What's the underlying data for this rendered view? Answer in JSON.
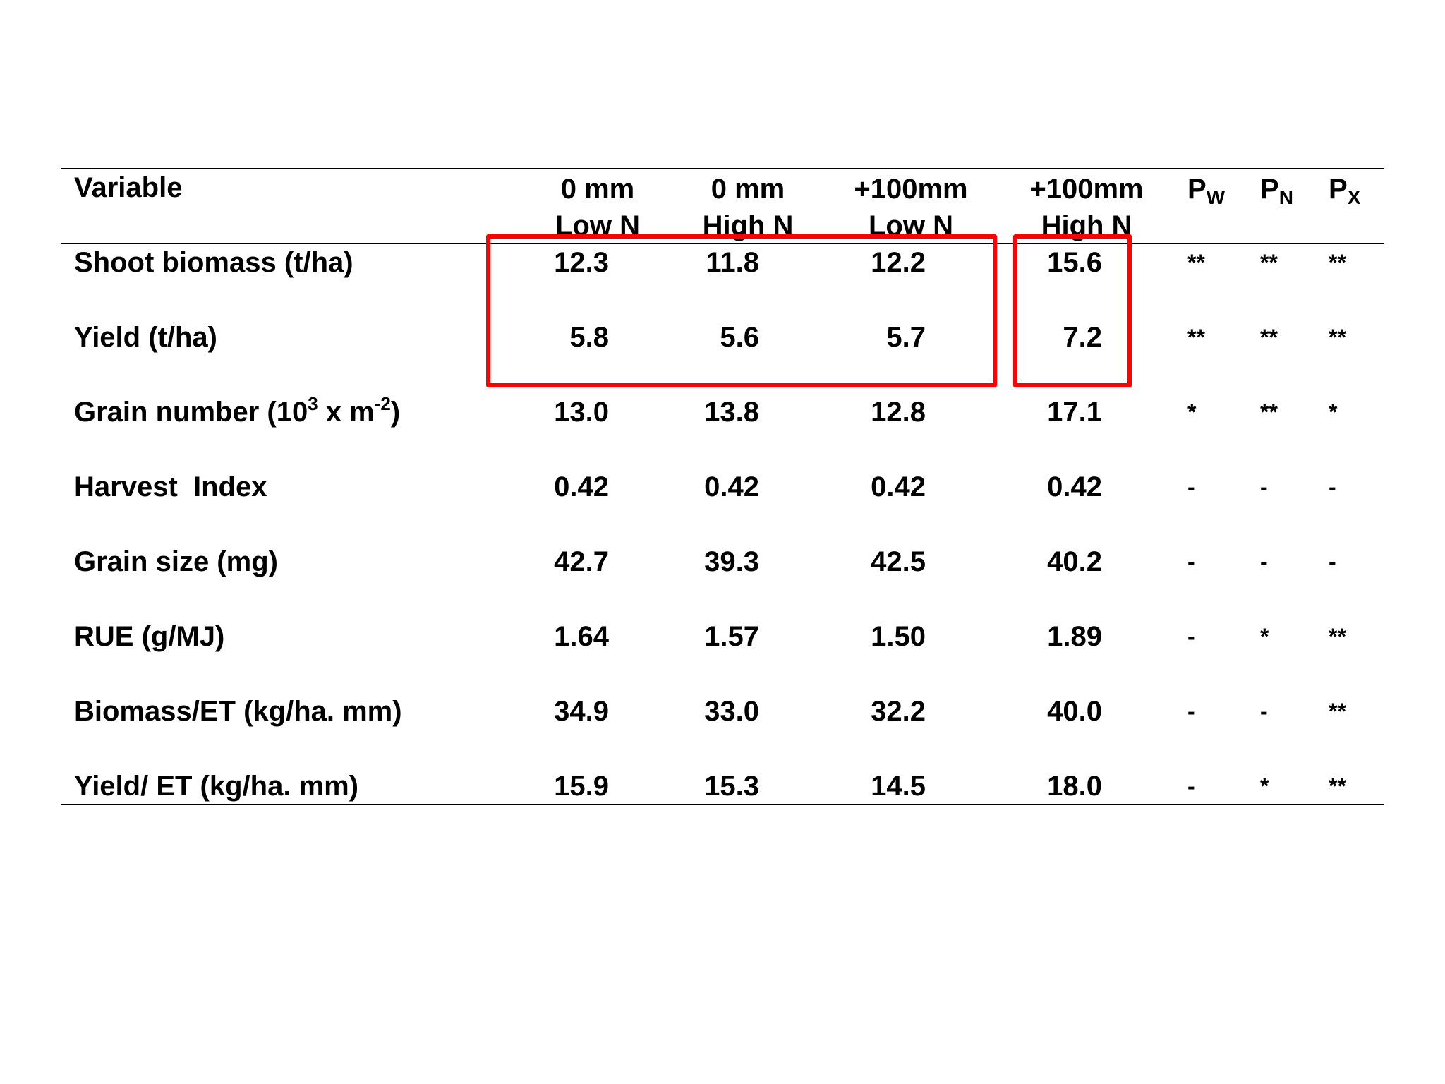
{
  "table": {
    "header": {
      "variable": "Variable",
      "columns": [
        {
          "line1": "0 mm",
          "line2": "Low N"
        },
        {
          "line1": "0 mm",
          "line2": "High N"
        },
        {
          "line1": "+100mm",
          "line2": "Low N"
        },
        {
          "line1": "+100mm",
          "line2": "High N"
        }
      ],
      "p_columns": [
        {
          "main": "P",
          "sub": "W"
        },
        {
          "main": "P",
          "sub": "N"
        },
        {
          "main": "P",
          "sub": "X"
        }
      ]
    },
    "rows": [
      {
        "label": "Shoot biomass (t/ha)",
        "values": [
          "12.3",
          "11.8",
          "12.2",
          "15.6"
        ],
        "sig": [
          "**",
          "**",
          "**"
        ]
      },
      {
        "label": "Yield (t/ha)",
        "values": [
          "5.8",
          "5.6",
          "5.7",
          "7.2"
        ],
        "sig": [
          "**",
          "**",
          "**"
        ]
      },
      {
        "label_parts": {
          "a": "Grain number (10",
          "sup1": "3",
          "b": " x m",
          "sup2": "-2",
          "c": ")"
        },
        "values": [
          "13.0",
          "13.8",
          "12.8",
          "17.1"
        ],
        "sig": [
          "*",
          "**",
          "*"
        ]
      },
      {
        "label": "Harvest  Index",
        "values": [
          "0.42",
          "0.42",
          "0.42",
          "0.42"
        ],
        "sig": [
          "-",
          "-",
          "-"
        ]
      },
      {
        "label": "Grain size (mg)",
        "values": [
          "42.7",
          "39.3",
          "42.5",
          "40.2"
        ],
        "sig": [
          "-",
          "-",
          "-"
        ]
      },
      {
        "label": "RUE (g/MJ)",
        "values": [
          "1.64",
          "1.57",
          "1.50",
          "1.89"
        ],
        "sig": [
          "-",
          "*",
          "**"
        ]
      },
      {
        "label": "Biomass/ET (kg/ha. mm)",
        "values": [
          "34.9",
          "33.0",
          "32.2",
          "40.0"
        ],
        "sig": [
          "-",
          "-",
          "**"
        ]
      },
      {
        "label": "Yield/ ET (kg/ha. mm)",
        "values": [
          "15.9",
          "15.3",
          "14.5",
          "18.0"
        ],
        "sig": [
          "-",
          "*",
          "**"
        ]
      }
    ]
  },
  "highlight_color": "#ff0000"
}
